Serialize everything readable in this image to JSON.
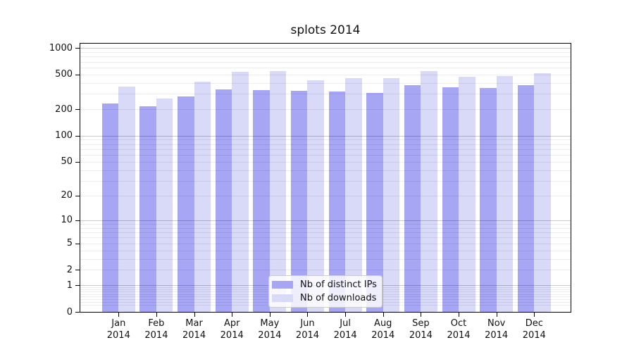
{
  "title": "splots 2014",
  "chart_data": {
    "type": "bar",
    "title": "splots 2014",
    "categories": [
      "Jan",
      "Feb",
      "Mar",
      "Apr",
      "May",
      "Jun",
      "Jul",
      "Aug",
      "Sep",
      "Oct",
      "Nov",
      "Dec"
    ],
    "x_tick_second_line": "2014",
    "series": [
      {
        "name": "Nb of distinct IPs",
        "color": "#a6a6f5",
        "values": [
          235,
          215,
          283,
          337,
          330,
          324,
          320,
          310,
          377,
          360,
          351,
          380
        ]
      },
      {
        "name": "Nb of downloads",
        "color": "#d9d9f8",
        "values": [
          362,
          268,
          418,
          532,
          548,
          428,
          455,
          458,
          550,
          472,
          478,
          517
        ]
      }
    ],
    "xlabel": "",
    "ylabel": "",
    "y_scale": "log10(1+y), zero shown at baseline",
    "y_ticks": [
      0,
      1,
      2,
      5,
      10,
      20,
      50,
      100,
      200,
      500,
      1000
    ],
    "ylim": [
      0,
      1124
    ],
    "grid": "horizontal, major decades darker + minor sub-decades faint",
    "legend_position": "lower center"
  },
  "colors": {
    "background": "#ffffff",
    "spine": "#000000",
    "bar_distinct_ips": "#a6a6f5",
    "bar_downloads": "#d9d9f8",
    "major_grid": "rgba(0,0,0,0.21)",
    "minor_grid": "rgba(0,0,0,0.075)"
  }
}
